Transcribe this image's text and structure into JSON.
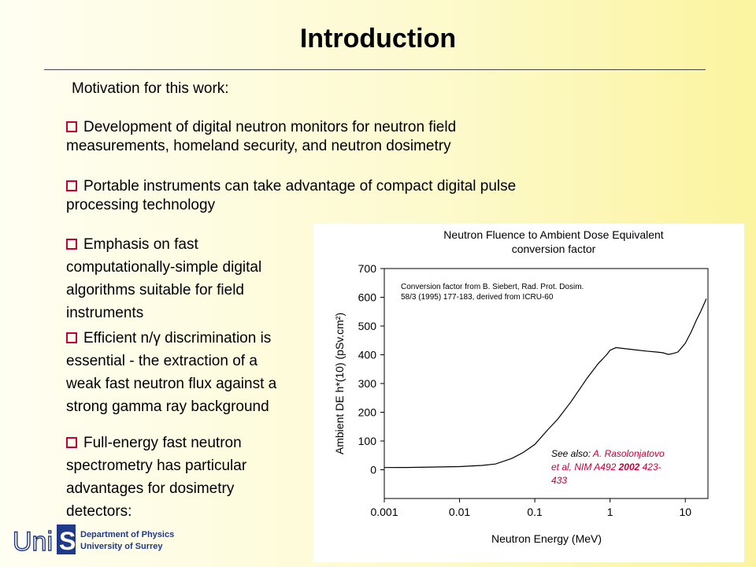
{
  "slide": {
    "title": "Introduction",
    "motivation": "Motivation for this work:",
    "bullets": [
      {
        "lines": [
          "Development of digital neutron monitors for neutron field",
          "measurements, homeland security, and neutron dosimetry"
        ]
      },
      {
        "lines": [
          "Portable instruments can take advantage of compact digital pulse",
          "processing technology"
        ]
      },
      {
        "lines": [
          "Emphasis on fast",
          "computationally-simple digital",
          "algorithms suitable for field",
          "instruments"
        ]
      },
      {
        "lines": [
          "Efficient n/γ discrimination is",
          "essential - the extraction of a",
          "weak fast neutron flux against a",
          "strong gamma ray background"
        ]
      },
      {
        "lines": [
          "Full-energy fast neutron",
          "spectrometry has particular",
          "advantages for dosimetry",
          "detectors:"
        ]
      }
    ],
    "bullet_color": "#c8003a"
  },
  "logo": {
    "uni": "Uni",
    "s": "S",
    "dept_line1": "Department of Physics",
    "dept_line2": "University of Surrey",
    "color": "#1f3a8a"
  },
  "chart_data": {
    "type": "line",
    "title": "Neutron Fluence to Ambient Dose Equivalent conversion factor",
    "title_lines": [
      "Neutron Fluence to Ambient Dose Equivalent",
      "conversion factor"
    ],
    "xlabel": "Neutron Energy (MeV)",
    "ylabel": "Ambient DE h*(10) (pSv.cm²)",
    "x_scale": "log",
    "xlim": [
      0.001,
      20
    ],
    "ylim": [
      -100,
      700
    ],
    "x_ticks": [
      0.001,
      0.01,
      0.1,
      1,
      10
    ],
    "x_tick_labels": [
      "0.001",
      "0.01",
      "0.1",
      "1",
      "10"
    ],
    "y_ticks": [
      0,
      100,
      200,
      300,
      400,
      500,
      600,
      700
    ],
    "grid": false,
    "series": [
      {
        "color": "#000000",
        "x": [
          0.001,
          0.002,
          0.005,
          0.01,
          0.02,
          0.03,
          0.05,
          0.07,
          0.1,
          0.15,
          0.2,
          0.3,
          0.5,
          0.7,
          0.9,
          1.0,
          1.2,
          1.5,
          2,
          3,
          4,
          5,
          6,
          7,
          8,
          10,
          12,
          14,
          16,
          18,
          19
        ],
        "y": [
          7.7,
          8,
          9.5,
          11,
          15,
          20,
          40,
          60,
          88,
          140,
          175,
          235,
          320,
          370,
          400,
          416,
          425,
          422,
          418,
          413,
          410,
          407,
          401,
          405,
          410,
          440,
          480,
          520,
          550,
          580,
          595
        ]
      }
    ],
    "annotations": [
      {
        "lines": [
          "Conversion factor from B. Siebert, Rad. Prot. Dosim.",
          "58/3 (1995) 177-183, derived from ICRU-60"
        ]
      }
    ],
    "see_also": {
      "prefix": "See also: ",
      "text1": "A. Rasolonjatovo",
      "text2": "et al, NIM A492 ",
      "year": "2002",
      "pages": " 423-",
      "text3": "433",
      "color": "#c8003a"
    }
  }
}
